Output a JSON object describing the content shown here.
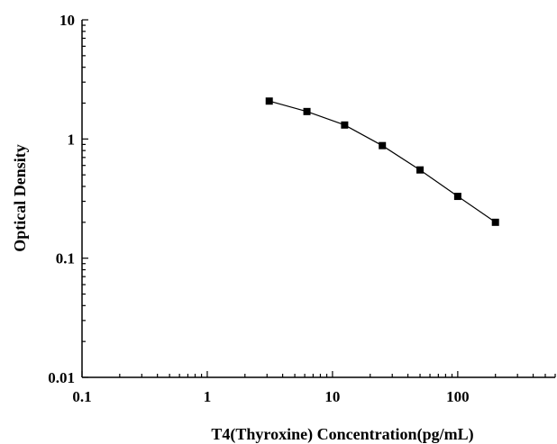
{
  "chart_data": {
    "type": "line",
    "title": "",
    "xlabel": "T4(Thyroxine) Concentration(pg/mL)",
    "ylabel": "Optical Density",
    "xscale": "log",
    "yscale": "log",
    "xlim": [
      0.1,
      600
    ],
    "ylim": [
      0.01,
      10
    ],
    "x_ticks": [
      0.1,
      1,
      10,
      100
    ],
    "x_tick_labels": [
      "0.1",
      "1",
      "10",
      "100"
    ],
    "y_ticks": [
      0.01,
      0.1,
      1,
      10
    ],
    "y_tick_labels": [
      "0.01",
      "0.1",
      "1",
      "10"
    ],
    "grid": false,
    "legend": "none",
    "series": [
      {
        "x": [
          3.125,
          6.25,
          12.5,
          25,
          50,
          100,
          200
        ],
        "y": [
          2.08,
          1.7,
          1.31,
          0.88,
          0.55,
          0.33,
          0.2
        ]
      }
    ],
    "colors": {
      "line": "#000000",
      "marker": "#000000",
      "axis": "#000000"
    }
  }
}
